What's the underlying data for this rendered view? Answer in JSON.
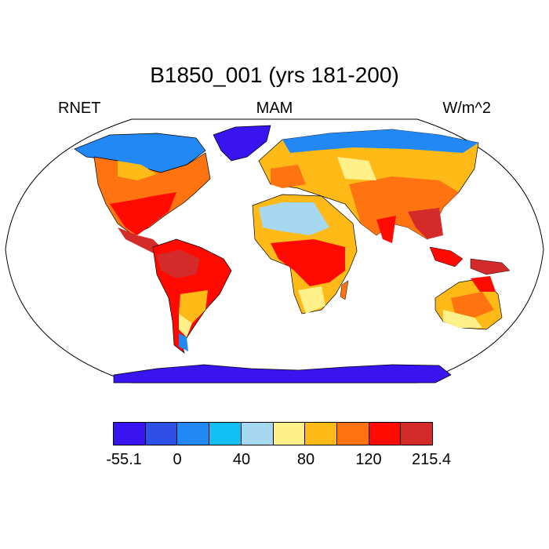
{
  "title": "B1850_001 (yrs 181-200)",
  "left_label": "RNET",
  "center_label": "MAM",
  "right_label": "W/m^2",
  "colorbar": {
    "colors": [
      "#3a14f0",
      "#2d4fe6",
      "#2288f5",
      "#12c0f5",
      "#a6d8f0",
      "#fff08a",
      "#ffba18",
      "#ff7410",
      "#ff0a00",
      "#d42a2a"
    ],
    "tick_labels": [
      "-55.1",
      "0",
      "40",
      "80",
      "120",
      "215.4"
    ]
  },
  "colors": {
    "land_outline": "#000000",
    "ocean": "#ffffff"
  }
}
